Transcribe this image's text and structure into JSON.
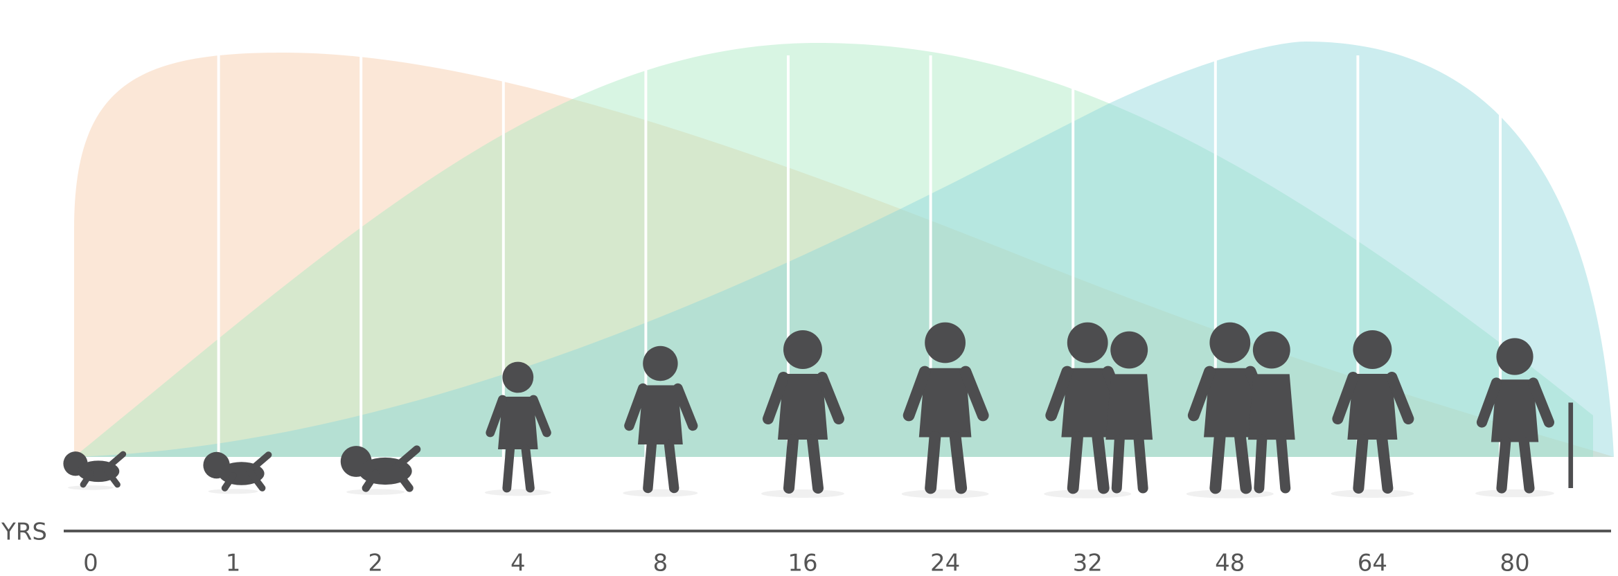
{
  "axis_label": "YRS",
  "ages": [
    "0",
    "1",
    "2",
    "4",
    "8",
    "16",
    "24",
    "32",
    "48",
    "64",
    "80"
  ]
}
